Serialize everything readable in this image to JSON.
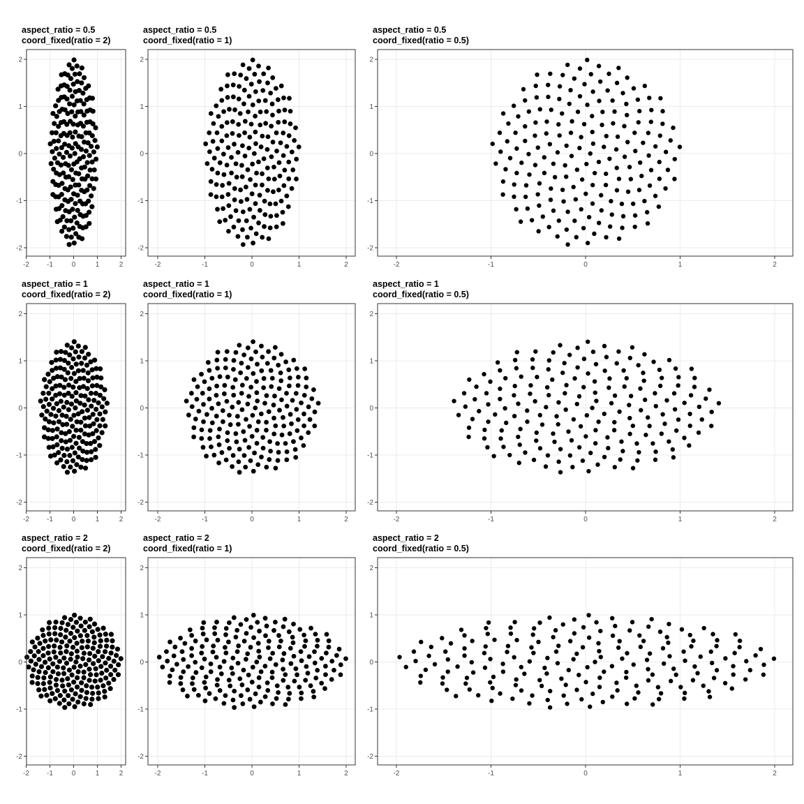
{
  "chart_data": [
    {
      "type": "scatter",
      "title_line1": "aspect_ratio = 0.5",
      "title_line2": "coord_fixed(ratio = 2)",
      "aspect_ratio": 0.5,
      "coord_ratio": 2,
      "n_points": 200,
      "xlim": [
        -2.2,
        2.2
      ],
      "ylim": [
        -2.2,
        2.2
      ],
      "x_ticks": [
        -2,
        -1,
        0,
        1,
        2
      ],
      "y_ticks": [
        -2,
        -1,
        0,
        1,
        2
      ],
      "grid": true,
      "x_tick_labels": [
        "-2",
        "-1",
        "0",
        "1",
        "2"
      ],
      "y_tick_labels": [
        "-2",
        "-1",
        "0",
        "1",
        "2"
      ]
    },
    {
      "type": "scatter",
      "title_line1": "aspect_ratio = 0.5",
      "title_line2": "coord_fixed(ratio = 1)",
      "aspect_ratio": 0.5,
      "coord_ratio": 1,
      "n_points": 200,
      "xlim": [
        -2.2,
        2.2
      ],
      "ylim": [
        -2.2,
        2.2
      ],
      "x_ticks": [
        -2,
        -1,
        0,
        1,
        2
      ],
      "y_ticks": [
        -2,
        -1,
        0,
        1,
        2
      ],
      "grid": true,
      "x_tick_labels": [
        "-2",
        "-1",
        "0",
        "1",
        "2"
      ],
      "y_tick_labels": [
        "-2",
        "-1",
        "0",
        "1",
        "2"
      ]
    },
    {
      "type": "scatter",
      "title_line1": "aspect_ratio = 0.5",
      "title_line2": "coord_fixed(ratio = 0.5)",
      "aspect_ratio": 0.5,
      "coord_ratio": 0.5,
      "n_points": 200,
      "xlim": [
        -2.2,
        2.2
      ],
      "ylim": [
        -2.2,
        2.2
      ],
      "x_ticks": [
        -2,
        -1,
        0,
        1,
        2
      ],
      "y_ticks": [
        -2,
        -1,
        0,
        1,
        2
      ],
      "grid": true,
      "x_tick_labels": [
        "-2",
        "-1",
        "0",
        "1",
        "2"
      ],
      "y_tick_labels": [
        "-2",
        "-1",
        "0",
        "1",
        "2"
      ]
    },
    {
      "type": "scatter",
      "title_line1": "aspect_ratio = 1",
      "title_line2": "coord_fixed(ratio = 2)",
      "aspect_ratio": 1,
      "coord_ratio": 2,
      "n_points": 200,
      "xlim": [
        -2.2,
        2.2
      ],
      "ylim": [
        -2.2,
        2.2
      ],
      "x_ticks": [
        -2,
        -1,
        0,
        1,
        2
      ],
      "y_ticks": [
        -2,
        -1,
        0,
        1,
        2
      ],
      "grid": true,
      "x_tick_labels": [
        "-2",
        "-1",
        "0",
        "1",
        "2"
      ],
      "y_tick_labels": [
        "-2",
        "-1",
        "0",
        "1",
        "2"
      ]
    },
    {
      "type": "scatter",
      "title_line1": "aspect_ratio = 1",
      "title_line2": "coord_fixed(ratio = 1)",
      "aspect_ratio": 1,
      "coord_ratio": 1,
      "n_points": 200,
      "xlim": [
        -2.2,
        2.2
      ],
      "ylim": [
        -2.2,
        2.2
      ],
      "x_ticks": [
        -2,
        -1,
        0,
        1,
        2
      ],
      "y_ticks": [
        -2,
        -1,
        0,
        1,
        2
      ],
      "grid": true,
      "x_tick_labels": [
        "-2",
        "-1",
        "0",
        "1",
        "2"
      ],
      "y_tick_labels": [
        "-2",
        "-1",
        "0",
        "1",
        "2"
      ]
    },
    {
      "type": "scatter",
      "title_line1": "aspect_ratio = 1",
      "title_line2": "coord_fixed(ratio = 0.5)",
      "aspect_ratio": 1,
      "coord_ratio": 0.5,
      "n_points": 200,
      "xlim": [
        -2.2,
        2.2
      ],
      "ylim": [
        -2.2,
        2.2
      ],
      "x_ticks": [
        -2,
        -1,
        0,
        1,
        2
      ],
      "y_ticks": [
        -2,
        -1,
        0,
        1,
        2
      ],
      "grid": true,
      "x_tick_labels": [
        "-2",
        "-1",
        "0",
        "1",
        "2"
      ],
      "y_tick_labels": [
        "-2",
        "-1",
        "0",
        "1",
        "2"
      ]
    },
    {
      "type": "scatter",
      "title_line1": "aspect_ratio = 2",
      "title_line2": "coord_fixed(ratio = 2)",
      "aspect_ratio": 2,
      "coord_ratio": 2,
      "n_points": 200,
      "xlim": [
        -2.2,
        2.2
      ],
      "ylim": [
        -2.2,
        2.2
      ],
      "x_ticks": [
        -2,
        -1,
        0,
        1,
        2
      ],
      "y_ticks": [
        -2,
        -1,
        0,
        1,
        2
      ],
      "grid": true,
      "x_tick_labels": [
        "-2",
        "-1",
        "0",
        "1",
        "2"
      ],
      "y_tick_labels": [
        "-2",
        "-1",
        "0",
        "1",
        "2"
      ]
    },
    {
      "type": "scatter",
      "title_line1": "aspect_ratio = 2",
      "title_line2": "coord_fixed(ratio = 1)",
      "aspect_ratio": 2,
      "coord_ratio": 1,
      "n_points": 200,
      "xlim": [
        -2.2,
        2.2
      ],
      "ylim": [
        -2.2,
        2.2
      ],
      "x_ticks": [
        -2,
        -1,
        0,
        1,
        2
      ],
      "y_ticks": [
        -2,
        -1,
        0,
        1,
        2
      ],
      "grid": true,
      "x_tick_labels": [
        "-2",
        "-1",
        "0",
        "1",
        "2"
      ],
      "y_tick_labels": [
        "-2",
        "-1",
        "0",
        "1",
        "2"
      ]
    },
    {
      "type": "scatter",
      "title_line1": "aspect_ratio = 2",
      "title_line2": "coord_fixed(ratio = 0.5)",
      "aspect_ratio": 2,
      "coord_ratio": 0.5,
      "n_points": 200,
      "xlim": [
        -2.2,
        2.2
      ],
      "ylim": [
        -2.2,
        2.2
      ],
      "x_ticks": [
        -2,
        -1,
        0,
        1,
        2
      ],
      "y_ticks": [
        -2,
        -1,
        0,
        1,
        2
      ],
      "grid": true,
      "x_tick_labels": [
        "-2",
        "-1",
        "0",
        "1",
        "2"
      ],
      "y_tick_labels": [
        "-2",
        "-1",
        "0",
        "1",
        "2"
      ]
    }
  ],
  "colors": {
    "point": "#000000",
    "grid": "#ebebeb",
    "border": "#333333",
    "tick_label": "#4d4d4d"
  }
}
